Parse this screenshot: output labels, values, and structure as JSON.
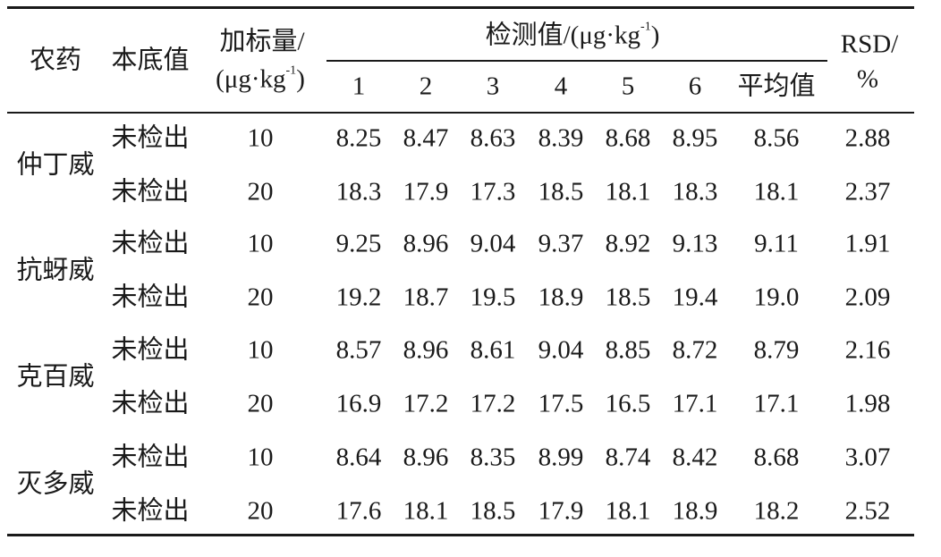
{
  "header": {
    "pesticide": "农药",
    "background": "本底值",
    "spike_line1": "加标量/",
    "spike_line2_pre": "(μg·kg",
    "spike_line2_sup": "-1",
    "spike_line2_post": ")",
    "detected_pre": "检测值/(μg·kg",
    "detected_sup": "-1",
    "detected_post": ")",
    "replicates": [
      "1",
      "2",
      "3",
      "4",
      "5",
      "6"
    ],
    "mean": "平均值",
    "rsd_line1": "RSD/",
    "rsd_line2": "%"
  },
  "groups": [
    {
      "pesticide": "仲丁威",
      "rows": [
        {
          "background": "未检出",
          "spike": "10",
          "values": [
            "8.25",
            "8.47",
            "8.63",
            "8.39",
            "8.68",
            "8.95"
          ],
          "mean": "8.56",
          "rsd": "2.88"
        },
        {
          "background": "未检出",
          "spike": "20",
          "values": [
            "18.3",
            "17.9",
            "17.3",
            "18.5",
            "18.1",
            "18.3"
          ],
          "mean": "18.1",
          "rsd": "2.37"
        }
      ]
    },
    {
      "pesticide": "抗蚜威",
      "rows": [
        {
          "background": "未检出",
          "spike": "10",
          "values": [
            "9.25",
            "8.96",
            "9.04",
            "9.37",
            "8.92",
            "9.13"
          ],
          "mean": "9.11",
          "rsd": "1.91"
        },
        {
          "background": "未检出",
          "spike": "20",
          "values": [
            "19.2",
            "18.7",
            "19.5",
            "18.9",
            "18.5",
            "19.4"
          ],
          "mean": "19.0",
          "rsd": "2.09"
        }
      ]
    },
    {
      "pesticide": "克百威",
      "rows": [
        {
          "background": "未检出",
          "spike": "10",
          "values": [
            "8.57",
            "8.96",
            "8.61",
            "9.04",
            "8.85",
            "8.72"
          ],
          "mean": "8.79",
          "rsd": "2.16"
        },
        {
          "background": "未检出",
          "spike": "20",
          "values": [
            "16.9",
            "17.2",
            "17.2",
            "17.5",
            "16.5",
            "17.1"
          ],
          "mean": "17.1",
          "rsd": "1.98"
        }
      ]
    },
    {
      "pesticide": "灭多威",
      "rows": [
        {
          "background": "未检出",
          "spike": "10",
          "values": [
            "8.64",
            "8.96",
            "8.35",
            "8.99",
            "8.74",
            "8.42"
          ],
          "mean": "8.68",
          "rsd": "3.07"
        },
        {
          "background": "未检出",
          "spike": "20",
          "values": [
            "17.6",
            "18.1",
            "18.5",
            "17.9",
            "18.1",
            "18.9"
          ],
          "mean": "18.2",
          "rsd": "2.52"
        }
      ]
    }
  ]
}
